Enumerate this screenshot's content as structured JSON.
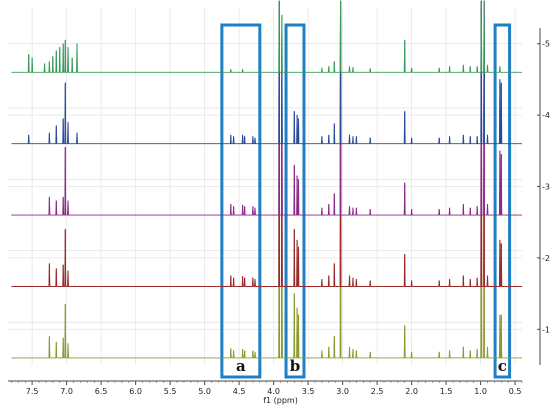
{
  "chart_data": {
    "type": "line",
    "chart_kind": "stacked NMR spectra",
    "xlabel": "f1 (ppm)",
    "x_reversed": true,
    "xlim": [
      7.85,
      0.4
    ],
    "x_ticks": [
      7.5,
      7.0,
      6.5,
      6.0,
      5.5,
      5.0,
      4.5,
      4.0,
      3.5,
      3.0,
      2.5,
      2.0,
      1.5,
      1.0,
      0.5
    ],
    "x_tick_labels": [
      "7.5",
      "7.0",
      "6.5",
      "6.0",
      "5.5",
      "5.0",
      "4.5",
      "4.0",
      "3.5",
      "3.0",
      "2.5",
      "2.0",
      "1.5",
      "1.0",
      "0.5"
    ],
    "y_ticks": [
      1,
      2,
      3,
      4,
      5
    ],
    "y_tick_labels": [
      "1",
      "2",
      "3",
      "4",
      "5"
    ],
    "ylim": [
      0.5,
      5.5
    ],
    "grid": true,
    "series": [
      {
        "id": "1",
        "color": "#8a9a2c",
        "baseline": 0.6,
        "peaks": [
          [
            7.25,
            0.3
          ],
          [
            7.15,
            0.22
          ],
          [
            7.05,
            0.28
          ],
          [
            7.02,
            0.75
          ],
          [
            6.98,
            0.2
          ],
          [
            4.62,
            0.13
          ],
          [
            4.58,
            0.1
          ],
          [
            4.45,
            0.12
          ],
          [
            4.42,
            0.1
          ],
          [
            4.3,
            0.1
          ],
          [
            4.27,
            0.08
          ],
          [
            3.92,
            4.8
          ],
          [
            3.88,
            3.0
          ],
          [
            3.7,
            0.9
          ],
          [
            3.66,
            0.7
          ],
          [
            3.64,
            0.6
          ],
          [
            3.3,
            0.1
          ],
          [
            3.2,
            0.15
          ],
          [
            3.12,
            0.3
          ],
          [
            3.03,
            4.8
          ],
          [
            2.9,
            0.15
          ],
          [
            2.85,
            0.12
          ],
          [
            2.8,
            0.1
          ],
          [
            2.6,
            0.08
          ],
          [
            2.1,
            0.45
          ],
          [
            2.0,
            0.08
          ],
          [
            1.6,
            0.08
          ],
          [
            1.45,
            0.1
          ],
          [
            1.25,
            0.15
          ],
          [
            1.15,
            0.1
          ],
          [
            1.05,
            0.12
          ],
          [
            0.99,
            4.8
          ],
          [
            0.95,
            4.8
          ],
          [
            0.9,
            0.15
          ],
          [
            0.72,
            0.6
          ],
          [
            0.7,
            0.6
          ]
        ]
      },
      {
        "id": "2",
        "color": "#9a2a2a",
        "baseline": 1.6,
        "peaks": [
          [
            7.25,
            0.32
          ],
          [
            7.15,
            0.25
          ],
          [
            7.05,
            0.3
          ],
          [
            7.02,
            0.8
          ],
          [
            6.98,
            0.22
          ],
          [
            4.62,
            0.15
          ],
          [
            4.58,
            0.12
          ],
          [
            4.45,
            0.14
          ],
          [
            4.42,
            0.12
          ],
          [
            4.3,
            0.12
          ],
          [
            4.27,
            0.1
          ],
          [
            3.92,
            4.0
          ],
          [
            3.88,
            2.5
          ],
          [
            3.7,
            0.8
          ],
          [
            3.66,
            0.65
          ],
          [
            3.64,
            0.55
          ],
          [
            3.3,
            0.1
          ],
          [
            3.2,
            0.15
          ],
          [
            3.12,
            0.32
          ],
          [
            3.03,
            4.0
          ],
          [
            2.9,
            0.15
          ],
          [
            2.85,
            0.12
          ],
          [
            2.8,
            0.1
          ],
          [
            2.6,
            0.08
          ],
          [
            2.1,
            0.45
          ],
          [
            2.0,
            0.08
          ],
          [
            1.6,
            0.08
          ],
          [
            1.45,
            0.1
          ],
          [
            1.25,
            0.15
          ],
          [
            1.15,
            0.1
          ],
          [
            1.05,
            0.12
          ],
          [
            0.99,
            4.0
          ],
          [
            0.95,
            4.0
          ],
          [
            0.9,
            0.15
          ],
          [
            0.72,
            0.65
          ],
          [
            0.7,
            0.6
          ]
        ]
      },
      {
        "id": "3",
        "color": "#8a2a8a",
        "baseline": 2.6,
        "peaks": [
          [
            7.25,
            0.25
          ],
          [
            7.15,
            0.2
          ],
          [
            7.05,
            0.25
          ],
          [
            7.02,
            0.95
          ],
          [
            6.98,
            0.2
          ],
          [
            4.62,
            0.15
          ],
          [
            4.58,
            0.12
          ],
          [
            4.45,
            0.14
          ],
          [
            4.42,
            0.12
          ],
          [
            4.3,
            0.12
          ],
          [
            4.27,
            0.1
          ],
          [
            3.92,
            3.0
          ],
          [
            3.88,
            2.0
          ],
          [
            3.7,
            0.7
          ],
          [
            3.66,
            0.55
          ],
          [
            3.64,
            0.5
          ],
          [
            3.3,
            0.1
          ],
          [
            3.2,
            0.15
          ],
          [
            3.12,
            0.3
          ],
          [
            3.03,
            3.0
          ],
          [
            2.9,
            0.12
          ],
          [
            2.85,
            0.1
          ],
          [
            2.8,
            0.1
          ],
          [
            2.6,
            0.08
          ],
          [
            2.1,
            0.45
          ],
          [
            2.0,
            0.08
          ],
          [
            1.6,
            0.08
          ],
          [
            1.45,
            0.1
          ],
          [
            1.25,
            0.15
          ],
          [
            1.15,
            0.1
          ],
          [
            1.05,
            0.12
          ],
          [
            0.99,
            3.0
          ],
          [
            0.95,
            3.0
          ],
          [
            0.9,
            0.15
          ],
          [
            0.72,
            0.9
          ],
          [
            0.7,
            0.85
          ]
        ]
      },
      {
        "id": "4",
        "color": "#2a4a9a",
        "baseline": 3.6,
        "peaks": [
          [
            7.55,
            0.12
          ],
          [
            7.25,
            0.15
          ],
          [
            7.15,
            0.25
          ],
          [
            7.05,
            0.35
          ],
          [
            7.02,
            0.85
          ],
          [
            6.98,
            0.3
          ],
          [
            6.85,
            0.15
          ],
          [
            4.62,
            0.12
          ],
          [
            4.58,
            0.1
          ],
          [
            4.45,
            0.12
          ],
          [
            4.42,
            0.1
          ],
          [
            4.3,
            0.1
          ],
          [
            4.27,
            0.08
          ],
          [
            3.92,
            2.0
          ],
          [
            3.88,
            1.5
          ],
          [
            3.7,
            0.45
          ],
          [
            3.66,
            0.4
          ],
          [
            3.64,
            0.35
          ],
          [
            3.3,
            0.1
          ],
          [
            3.2,
            0.12
          ],
          [
            3.12,
            0.28
          ],
          [
            3.03,
            2.0
          ],
          [
            2.9,
            0.12
          ],
          [
            2.85,
            0.1
          ],
          [
            2.8,
            0.1
          ],
          [
            2.6,
            0.08
          ],
          [
            2.1,
            0.45
          ],
          [
            2.0,
            0.08
          ],
          [
            1.6,
            0.08
          ],
          [
            1.45,
            0.1
          ],
          [
            1.25,
            0.12
          ],
          [
            1.15,
            0.1
          ],
          [
            1.05,
            0.1
          ],
          [
            0.99,
            2.0
          ],
          [
            0.95,
            2.0
          ],
          [
            0.9,
            0.12
          ],
          [
            0.72,
            0.9
          ],
          [
            0.7,
            0.85
          ]
        ]
      },
      {
        "id": "5",
        "color": "#3a9a5a",
        "baseline": 4.6,
        "peaks": [
          [
            7.55,
            0.25
          ],
          [
            7.5,
            0.2
          ],
          [
            7.32,
            0.12
          ],
          [
            7.25,
            0.15
          ],
          [
            7.2,
            0.22
          ],
          [
            7.15,
            0.3
          ],
          [
            7.1,
            0.35
          ],
          [
            7.05,
            0.4
          ],
          [
            7.02,
            0.45
          ],
          [
            6.98,
            0.35
          ],
          [
            6.92,
            0.2
          ],
          [
            6.85,
            0.4
          ],
          [
            4.62,
            0.04
          ],
          [
            4.45,
            0.04
          ],
          [
            3.92,
            1.0
          ],
          [
            3.88,
            0.8
          ],
          [
            3.3,
            0.06
          ],
          [
            3.2,
            0.08
          ],
          [
            3.12,
            0.15
          ],
          [
            3.03,
            1.0
          ],
          [
            2.9,
            0.08
          ],
          [
            2.85,
            0.07
          ],
          [
            2.6,
            0.05
          ],
          [
            2.1,
            0.45
          ],
          [
            2.0,
            0.06
          ],
          [
            1.6,
            0.06
          ],
          [
            1.45,
            0.08
          ],
          [
            1.25,
            0.1
          ],
          [
            1.15,
            0.08
          ],
          [
            1.05,
            0.08
          ],
          [
            0.99,
            1.0
          ],
          [
            0.95,
            1.0
          ],
          [
            0.9,
            0.1
          ],
          [
            0.72,
            0.08
          ]
        ]
      }
    ],
    "highlight_regions": [
      {
        "label": "a",
        "x_from": 4.75,
        "x_to": 4.2,
        "color": "#1f7fc4"
      },
      {
        "label": "b",
        "x_from": 3.82,
        "x_to": 3.56,
        "color": "#1f7fc4"
      },
      {
        "label": "c",
        "x_from": 0.79,
        "x_to": 0.58,
        "color": "#1f7fc4"
      }
    ]
  }
}
